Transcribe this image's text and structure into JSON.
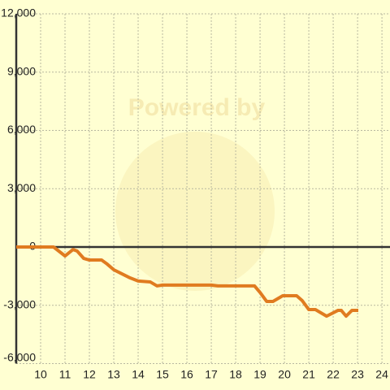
{
  "chart_data": {
    "type": "line",
    "watermark": "Powered by",
    "x": [
      9,
      10.53,
      11,
      11.33,
      11.5,
      11.77,
      12,
      12.5,
      12.73,
      13,
      13.27,
      13.67,
      14,
      14.5,
      14.77,
      15,
      17,
      17.27,
      18.77,
      19,
      19.27,
      19.53,
      19.93,
      20.5,
      20.73,
      21,
      21.27,
      21.73,
      22.2,
      22.33,
      22.53,
      22.77,
      23.03
    ],
    "series": [
      {
        "color": "#e07b20",
        "values": [
          0,
          0,
          -460,
          -130,
          -210,
          -590,
          -670,
          -670,
          -880,
          -1170,
          -1340,
          -1590,
          -1750,
          -1800,
          -2000,
          -1960,
          -1960,
          -2000,
          -2000,
          -2340,
          -2800,
          -2800,
          -2510,
          -2510,
          -2760,
          -3220,
          -3220,
          -3560,
          -3260,
          -3260,
          -3560,
          -3260,
          -3260
        ]
      }
    ],
    "xlim": [
      9,
      24.33
    ],
    "ylim": [
      -6000,
      12000
    ],
    "xticks": [
      10,
      11,
      12,
      13,
      14,
      15,
      16,
      17,
      18,
      19,
      20,
      21,
      22,
      23,
      24
    ],
    "yticks": [
      {
        "value": -6000,
        "label": "-6,000"
      },
      {
        "value": -3000,
        "label": "-3,000"
      },
      0,
      {
        "value": 3000,
        "label": "3,000"
      },
      {
        "value": 6000,
        "label": "6,000"
      },
      {
        "value": 9000,
        "label": "9,000"
      },
      {
        "value": 12000,
        "label": "12,000"
      }
    ],
    "grid": true
  }
}
